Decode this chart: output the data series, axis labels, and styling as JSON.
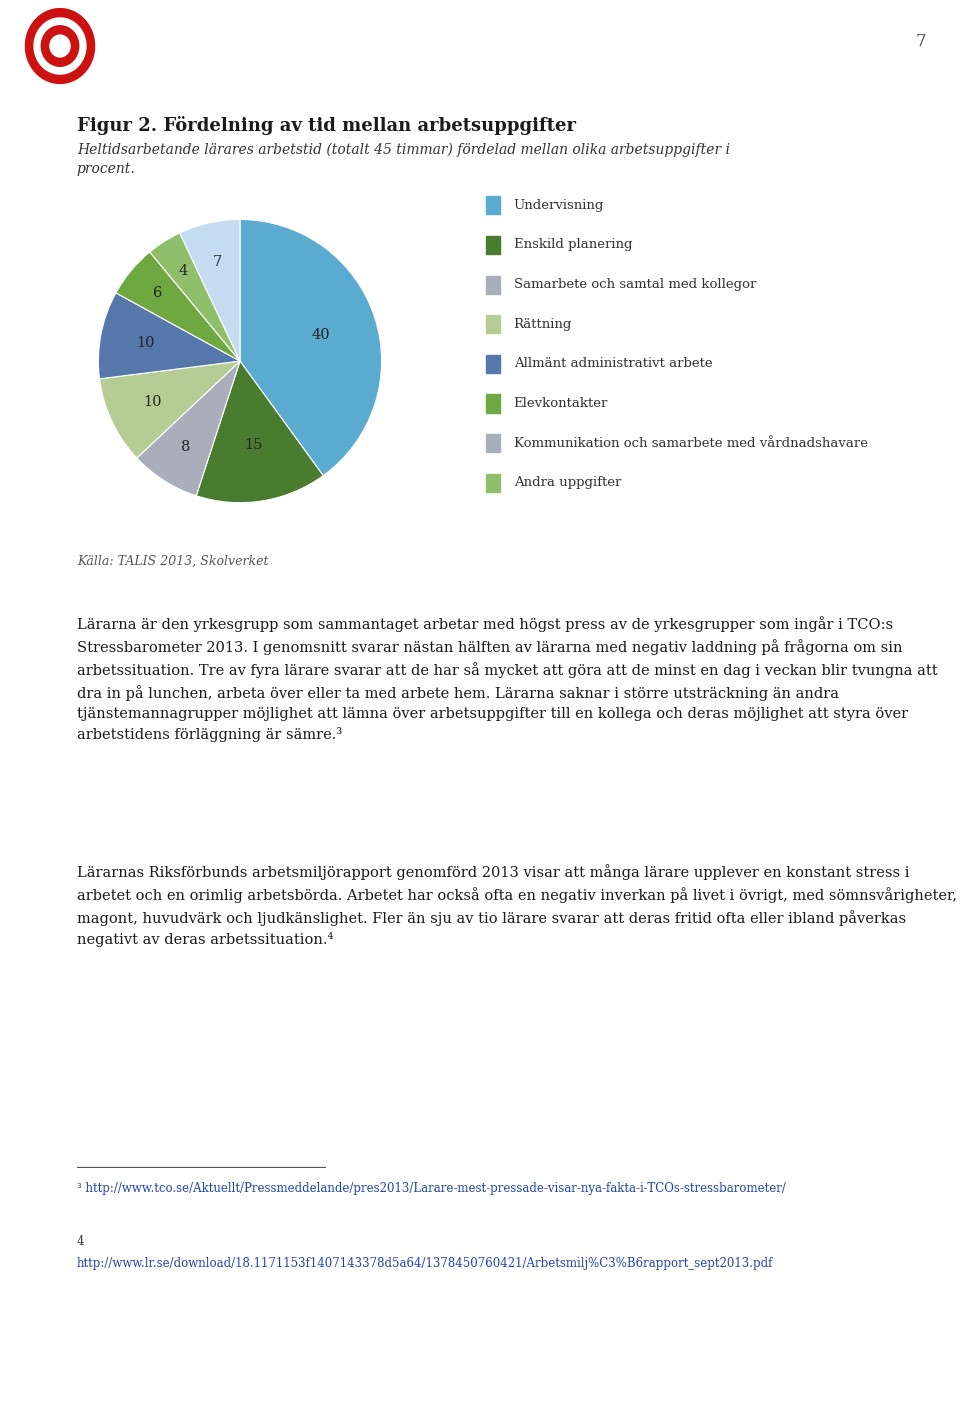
{
  "title": "Figur 2. Fördelning av tid mellan arbetsuppgifter",
  "subtitle": "Heltidsarbetande lärares arbetstid (totalt 45 timmar) fördelad mellan olika arbetsuppgifter i\nprocent.",
  "source": "Källa: TALIS 2013, Skolverket",
  "slices": [
    40,
    15,
    8,
    10,
    10,
    6,
    4,
    7
  ],
  "slice_labels": [
    "40",
    "15",
    "8",
    "10",
    "10",
    "6",
    "4",
    "7"
  ],
  "pie_colors": [
    "#5BAAD0",
    "#4A7C2F",
    "#A8AFBA",
    "#B5CC94",
    "#5577AA",
    "#6FA840",
    "#8FBF6A",
    "#C5DCF0"
  ],
  "legend_labels": [
    "Undervisning",
    "Enskild planering",
    "Samarbete och samtal med kollegor",
    "Rättning",
    "Allmänt administrativt arbete",
    "Elevkontakter",
    "Kommunikation och samarbete med vårdnadshavare",
    "Andra uppgifter"
  ],
  "legend_colors": [
    "#5BAAD0",
    "#4A7C2F",
    "#A8AFBA",
    "#B5CC94",
    "#5577AA",
    "#6FA840",
    "#A8AFBA",
    "#8FBF6A"
  ],
  "body_text1": "Lärarna är den yrkesgrupp som sammantaget arbetar med högst press av de yrkesgrupper som ingår i TCO:s Stressbarometer 2013. I genomsnitt svarar nästan hälften av lärarna med negativ laddning på frågorna om sin arbetssituation. Tre av fyra lärare svarar att de har så mycket att göra att de minst en dag i veckan blir tvungna att dra in på lunchen, arbeta över eller ta med arbete hem. Lärarna saknar i större utsträckning än andra tjänstemannagrupper möjlighet att lämna över arbetsuppgifter till en kollega och deras möjlighet att styra över arbetstidens förläggning är sämre.³",
  "body_text2": "Lärarnas Riksförbunds arbetsmiljörapport genomförd 2013 visar att många lärare upplever en konstant stress i arbetet och en orimlig arbetsbörda. Arbetet har också ofta en negativ inverkan på livet i övrigt, med sömnsvårigheter, magont, huvudvärk och ljudkänslighet. Fler än sju av tio lärare svarar att deras fritid ofta eller ibland påverkas negativt av deras arbetssituation.⁴",
  "footnote3": "³ http://www.tco.se/Aktuellt/Pressmeddelande/pres2013/Larare-mest-pressade-visar-nya-fakta-i-TCOs-stressbarometer/",
  "footnote4_num": "4",
  "footnote4_url": "http://www.lr.se/download/18.1171153f1407143378d5a64/1378450760421/Arbetsmilj%C3%B6rapport_sept2013.pdf",
  "page_number": "7",
  "background_color": "#FFFFFF"
}
